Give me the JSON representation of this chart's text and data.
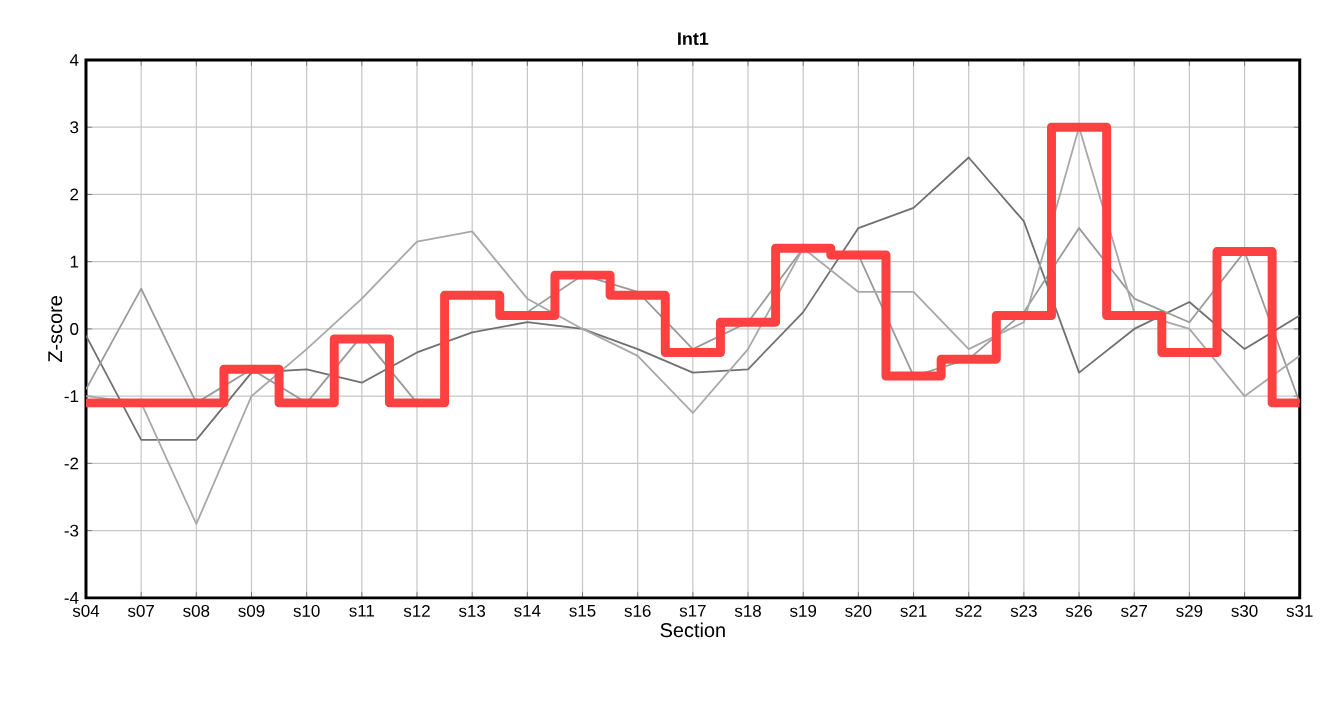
{
  "chart_data": {
    "type": "line",
    "title": "Int1",
    "xlabel": "Section",
    "ylabel": "Z-score",
    "categories": [
      "s04",
      "s07",
      "s08",
      "s09",
      "s10",
      "s11",
      "s12",
      "s13",
      "s14",
      "s15",
      "s16",
      "s17",
      "s18",
      "s19",
      "s20",
      "s21",
      "s22",
      "s23",
      "s26",
      "s27",
      "s29",
      "s30",
      "s31"
    ],
    "series": [
      {
        "color": "#707070",
        "values": [
          -0.1,
          -1.65,
          -1.65,
          -0.65,
          -0.6,
          -0.8,
          -0.35,
          -0.05,
          0.1,
          0.0,
          -0.3,
          -0.65,
          -0.6,
          0.25,
          1.5,
          1.8,
          2.55,
          1.6,
          -0.65,
          0.0,
          0.4,
          -0.3,
          0.2
        ]
      },
      {
        "color": "#9a9a9a",
        "values": [
          -0.9,
          0.6,
          -1.1,
          -0.6,
          -1.1,
          -0.1,
          -1.1,
          null,
          0.25,
          0.8,
          0.55,
          -0.3,
          0.1,
          1.2,
          1.1,
          -0.7,
          -0.45,
          0.25,
          1.5,
          0.45,
          0.1,
          1.15,
          -1.1
        ]
      },
      {
        "color": "#a8a8a8",
        "values": [
          -1.0,
          -1.1,
          -2.9,
          -1.0,
          -0.3,
          0.45,
          1.3,
          1.45,
          0.45,
          0.0,
          -0.4,
          -1.25,
          -0.3,
          1.2,
          0.55,
          0.55,
          -0.3,
          0.1,
          3.0,
          0.25,
          0.0,
          -1.0,
          -0.4
        ]
      },
      {
        "type": "step",
        "color": "#ff4040",
        "values": [
          -1.1,
          -1.1,
          -1.1,
          -0.6,
          -1.1,
          -0.15,
          -1.1,
          0.5,
          0.2,
          0.8,
          0.5,
          -0.35,
          0.1,
          1.2,
          1.1,
          -0.7,
          -0.45,
          0.2,
          3.0,
          0.2,
          -0.35,
          1.15,
          -1.1
        ]
      }
    ],
    "ylim": [
      -4,
      4
    ],
    "yticks": [
      -4,
      -3,
      -2,
      -1,
      0,
      1,
      2,
      3,
      4
    ],
    "grid": true,
    "legend": false,
    "marker": "none",
    "line_style": "solid"
  }
}
